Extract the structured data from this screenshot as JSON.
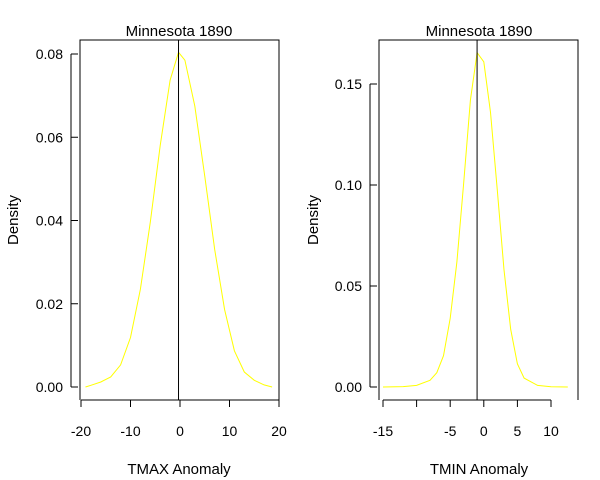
{
  "chart_data": [
    {
      "type": "line",
      "title": "Minnesota 1890",
      "xlabel": "TMAX Anomaly",
      "ylabel": "Density",
      "xlim": [
        -20,
        20
      ],
      "ylim": [
        0,
        0.083
      ],
      "xticks": [
        "-20",
        "-10",
        "0",
        "10",
        "20"
      ],
      "yticks": [
        "0.00",
        "0.02",
        "0.04",
        "0.06",
        "0.08"
      ],
      "vline": -0.3,
      "series": [
        {
          "color": "#ffff00",
          "x": [
            -19.1,
            -18,
            -16,
            -14,
            -12,
            -10,
            -8,
            -6,
            -4,
            -2,
            -0.3,
            1,
            3,
            5,
            7,
            9,
            11,
            13,
            15,
            17,
            18.6
          ],
          "y": [
            0.0,
            0.0004,
            0.0012,
            0.0024,
            0.0053,
            0.0119,
            0.0235,
            0.0396,
            0.058,
            0.0737,
            0.0804,
            0.0785,
            0.0675,
            0.0506,
            0.033,
            0.0186,
            0.0087,
            0.0036,
            0.0016,
            0.0005,
            0.0
          ]
        }
      ]
    },
    {
      "type": "line",
      "title": "Minnesota 1890",
      "xlabel": "TMIN Anomaly",
      "ylabel": "Density",
      "xlim": [
        -15.2,
        12.8
      ],
      "ylim": [
        0,
        0.17
      ],
      "xticks": [
        "-15",
        "-5",
        "0",
        "5",
        "10"
      ],
      "yticks": [
        "0.00",
        "0.05",
        "0.10",
        "0.15"
      ],
      "extra_xticks": [
        -10
      ],
      "vline": -1.0,
      "series": [
        {
          "color": "#ffff00",
          "x": [
            -15.0,
            -12,
            -10,
            -8,
            -7,
            -6,
            -5,
            -4,
            -3,
            -2,
            -1,
            0,
            1,
            2,
            3,
            4,
            5,
            6,
            8,
            10,
            12.5
          ],
          "y": [
            0.0,
            0.0002,
            0.0008,
            0.0033,
            0.0071,
            0.0155,
            0.034,
            0.062,
            0.1005,
            0.142,
            0.1655,
            0.161,
            0.136,
            0.098,
            0.058,
            0.0285,
            0.0115,
            0.0044,
            0.0008,
            0.0001,
            0.0
          ]
        }
      ]
    }
  ]
}
